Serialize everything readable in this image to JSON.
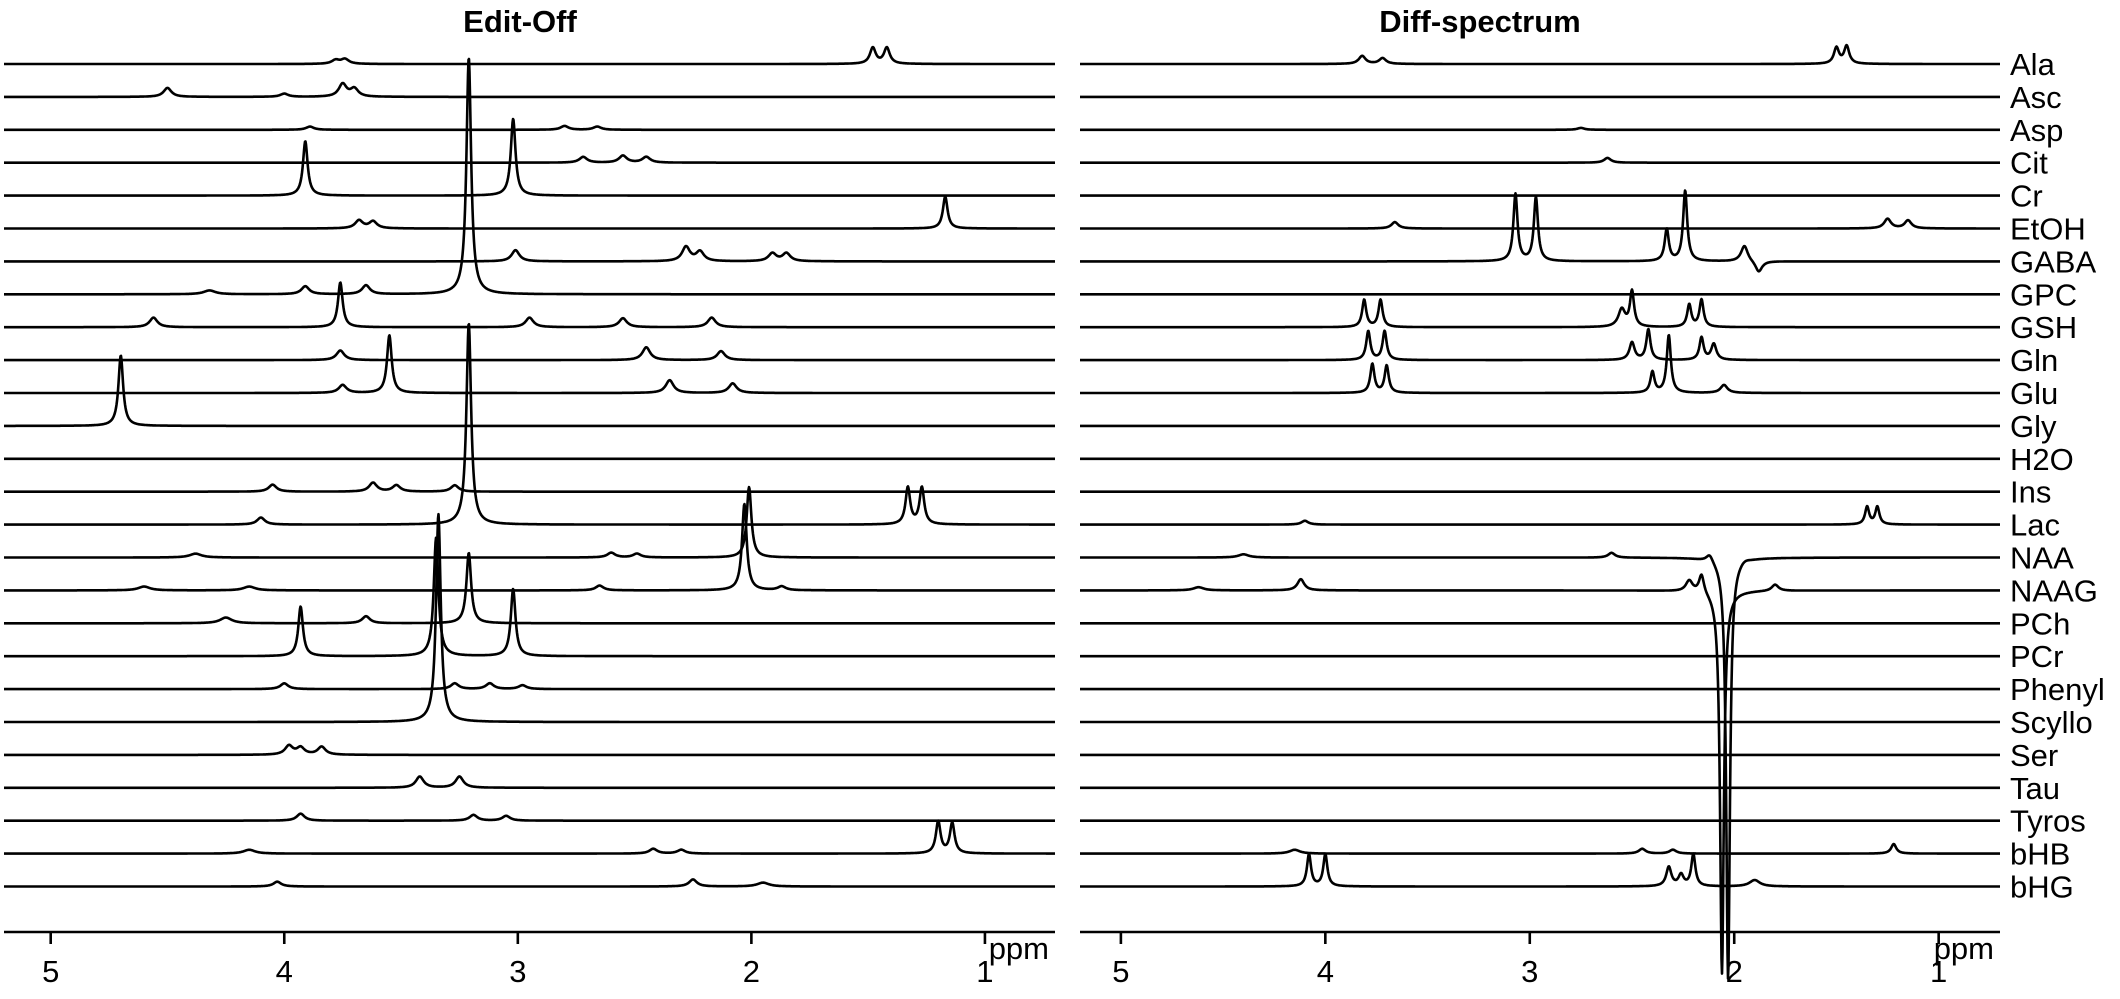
{
  "chart_data": [
    {
      "type": "line",
      "title": "Edit-Off",
      "xlabel": "ppm",
      "x_reversed": true,
      "xlim": [
        5.2,
        0.7
      ],
      "xticks": [
        5,
        4,
        3,
        2,
        1
      ],
      "xtick_labels": [
        "5",
        "4",
        "3",
        "2",
        "1"
      ],
      "grid": false,
      "stacked_offset_traces": true,
      "series": [
        {
          "name": "Ala",
          "peaks": [
            [
              3.78,
              0.12,
              0.02
            ],
            [
              3.74,
              0.15,
              0.02
            ],
            [
              1.48,
              0.5,
              0.015
            ],
            [
              1.42,
              0.5,
              0.015
            ]
          ]
        },
        {
          "name": "Asc",
          "peaks": [
            [
              4.5,
              0.28,
              0.02
            ],
            [
              4.0,
              0.1,
              0.02
            ],
            [
              3.75,
              0.4,
              0.02
            ],
            [
              3.7,
              0.25,
              0.02
            ]
          ]
        },
        {
          "name": "Asp",
          "peaks": [
            [
              3.89,
              0.1,
              0.02
            ],
            [
              2.8,
              0.12,
              0.02
            ],
            [
              2.66,
              0.1,
              0.02
            ]
          ]
        },
        {
          "name": "Cit",
          "peaks": [
            [
              2.72,
              0.18,
              0.02
            ],
            [
              2.55,
              0.22,
              0.02
            ],
            [
              2.45,
              0.18,
              0.02
            ]
          ]
        },
        {
          "name": "Cr",
          "peaks": [
            [
              3.91,
              1.7,
              0.012
            ],
            [
              3.02,
              2.4,
              0.012
            ]
          ]
        },
        {
          "name": "EtOH",
          "peaks": [
            [
              3.68,
              0.25,
              0.02
            ],
            [
              3.62,
              0.22,
              0.02
            ],
            [
              1.17,
              1.0,
              0.012
            ]
          ]
        },
        {
          "name": "GABA",
          "peaks": [
            [
              3.01,
              0.35,
              0.02
            ],
            [
              2.28,
              0.45,
              0.02
            ],
            [
              2.22,
              0.3,
              0.02
            ],
            [
              1.91,
              0.25,
              0.02
            ],
            [
              1.85,
              0.25,
              0.02
            ]
          ]
        },
        {
          "name": "GPC",
          "peaks": [
            [
              4.32,
              0.12,
              0.03
            ],
            [
              3.91,
              0.25,
              0.02
            ],
            [
              3.65,
              0.28,
              0.02
            ],
            [
              3.21,
              7.4,
              0.012
            ]
          ]
        },
        {
          "name": "GSH",
          "peaks": [
            [
              4.56,
              0.3,
              0.02
            ],
            [
              3.76,
              1.4,
              0.012
            ],
            [
              2.95,
              0.3,
              0.02
            ],
            [
              2.55,
              0.28,
              0.02
            ],
            [
              2.17,
              0.3,
              0.02
            ]
          ]
        },
        {
          "name": "Gln",
          "peaks": [
            [
              3.76,
              0.3,
              0.02
            ],
            [
              2.45,
              0.4,
              0.02
            ],
            [
              2.13,
              0.28,
              0.02
            ]
          ]
        },
        {
          "name": "Glu",
          "peaks": [
            [
              3.75,
              0.25,
              0.02
            ],
            [
              3.55,
              1.8,
              0.012
            ],
            [
              2.35,
              0.4,
              0.02
            ],
            [
              2.08,
              0.3,
              0.02
            ]
          ]
        },
        {
          "name": "Gly",
          "peaks": [
            [
              4.7,
              2.2,
              0.012
            ]
          ]
        },
        {
          "name": "H2O",
          "peaks": []
        },
        {
          "name": "Ins",
          "peaks": [
            [
              4.05,
              0.22,
              0.02
            ],
            [
              3.62,
              0.28,
              0.02
            ],
            [
              3.52,
              0.2,
              0.02
            ],
            [
              3.27,
              0.2,
              0.02
            ]
          ]
        },
        {
          "name": "Lac",
          "peaks": [
            [
              4.1,
              0.22,
              0.02
            ],
            [
              3.21,
              6.3,
              0.012
            ],
            [
              1.33,
              1.15,
              0.012
            ],
            [
              1.27,
              1.15,
              0.012
            ]
          ]
        },
        {
          "name": "NAA",
          "peaks": [
            [
              4.38,
              0.12,
              0.03
            ],
            [
              2.6,
              0.15,
              0.02
            ],
            [
              2.01,
              2.2,
              0.012
            ],
            [
              2.49,
              0.12,
              0.02
            ]
          ]
        },
        {
          "name": "NAAG",
          "peaks": [
            [
              4.6,
              0.12,
              0.03
            ],
            [
              4.15,
              0.12,
              0.03
            ],
            [
              2.65,
              0.15,
              0.02
            ],
            [
              2.03,
              2.7,
              0.012
            ],
            [
              1.87,
              0.12,
              0.02
            ]
          ]
        },
        {
          "name": "PCh",
          "peaks": [
            [
              4.25,
              0.18,
              0.03
            ],
            [
              3.65,
              0.22,
              0.02
            ],
            [
              3.21,
              2.2,
              0.012
            ]
          ]
        },
        {
          "name": "PCr",
          "peaks": [
            [
              3.93,
              1.55,
              0.012
            ],
            [
              3.35,
              3.7,
              0.012
            ],
            [
              3.02,
              2.1,
              0.012
            ]
          ]
        },
        {
          "name": "Phenyl",
          "peaks": [
            [
              4.0,
              0.18,
              0.02
            ],
            [
              3.27,
              0.18,
              0.02
            ],
            [
              3.12,
              0.18,
              0.02
            ],
            [
              2.98,
              0.12,
              0.02
            ]
          ]
        },
        {
          "name": "Scyllo",
          "peaks": [
            [
              3.34,
              6.5,
              0.012
            ]
          ]
        },
        {
          "name": "Ser",
          "peaks": [
            [
              3.98,
              0.28,
              0.02
            ],
            [
              3.93,
              0.22,
              0.02
            ],
            [
              3.84,
              0.25,
              0.02
            ]
          ]
        },
        {
          "name": "Tau",
          "peaks": [
            [
              3.42,
              0.35,
              0.02
            ],
            [
              3.25,
              0.35,
              0.02
            ]
          ]
        },
        {
          "name": "Tyros",
          "peaks": [
            [
              3.93,
              0.22,
              0.02
            ],
            [
              3.19,
              0.18,
              0.02
            ],
            [
              3.05,
              0.15,
              0.02
            ]
          ]
        },
        {
          "name": "bHB",
          "peaks": [
            [
              4.15,
              0.12,
              0.03
            ],
            [
              2.42,
              0.15,
              0.02
            ],
            [
              2.3,
              0.12,
              0.02
            ],
            [
              1.2,
              1.0,
              0.012
            ],
            [
              1.14,
              0.95,
              0.012
            ]
          ]
        },
        {
          "name": "bHG",
          "peaks": [
            [
              4.03,
              0.15,
              0.02
            ],
            [
              2.25,
              0.22,
              0.02
            ],
            [
              1.95,
              0.12,
              0.03
            ]
          ]
        }
      ]
    },
    {
      "type": "line",
      "title": "Diff-spectrum",
      "xlabel": "ppm",
      "x_reversed": true,
      "xlim": [
        5.2,
        0.7
      ],
      "xticks": [
        5,
        4,
        3,
        2,
        1
      ],
      "xtick_labels": [
        "5",
        "4",
        "3",
        "2",
        "1"
      ],
      "grid": false,
      "stacked_offset_traces": true,
      "series": [
        {
          "name": "Ala",
          "peaks": [
            [
              3.82,
              0.25,
              0.02
            ],
            [
              3.72,
              0.18,
              0.02
            ],
            [
              1.5,
              0.5,
              0.015
            ],
            [
              1.45,
              0.55,
              0.015
            ]
          ]
        },
        {
          "name": "Asc",
          "peaks": []
        },
        {
          "name": "Asp",
          "peaks": [
            [
              2.75,
              0.06,
              0.02
            ]
          ]
        },
        {
          "name": "Cit",
          "peaks": [
            [
              2.62,
              0.15,
              0.02
            ]
          ]
        },
        {
          "name": "Cr",
          "peaks": []
        },
        {
          "name": "EtOH",
          "peaks": [
            [
              3.66,
              0.2,
              0.02
            ],
            [
              1.25,
              0.3,
              0.02
            ],
            [
              1.15,
              0.25,
              0.02
            ]
          ]
        },
        {
          "name": "GABA",
          "peaks": [
            [
              3.07,
              2.1,
              0.012
            ],
            [
              2.97,
              2.0,
              0.012
            ],
            [
              2.33,
              1.0,
              0.012
            ],
            [
              2.24,
              2.2,
              0.012
            ],
            [
              1.95,
              0.5,
              0.02
            ],
            [
              1.88,
              -0.35,
              0.02
            ]
          ]
        },
        {
          "name": "GPC",
          "peaks": []
        },
        {
          "name": "GSH",
          "peaks": [
            [
              3.81,
              0.85,
              0.012
            ],
            [
              3.73,
              0.85,
              0.012
            ],
            [
              2.55,
              0.55,
              0.02
            ],
            [
              2.5,
              1.1,
              0.012
            ],
            [
              2.22,
              0.7,
              0.012
            ],
            [
              2.16,
              0.85,
              0.012
            ]
          ]
        },
        {
          "name": "Gln",
          "peaks": [
            [
              3.79,
              0.9,
              0.012
            ],
            [
              3.71,
              0.9,
              0.012
            ],
            [
              2.5,
              0.55,
              0.015
            ],
            [
              2.42,
              0.95,
              0.012
            ],
            [
              2.16,
              0.7,
              0.012
            ],
            [
              2.1,
              0.5,
              0.015
            ]
          ]
        },
        {
          "name": "Glu",
          "peaks": [
            [
              3.77,
              0.9,
              0.012
            ],
            [
              3.7,
              0.85,
              0.012
            ],
            [
              2.4,
              0.65,
              0.012
            ],
            [
              2.32,
              1.8,
              0.012
            ],
            [
              2.05,
              0.25,
              0.02
            ]
          ]
        },
        {
          "name": "Gly",
          "peaks": []
        },
        {
          "name": "H2O",
          "peaks": []
        },
        {
          "name": "Ins",
          "peaks": []
        },
        {
          "name": "Lac",
          "peaks": [
            [
              4.1,
              0.12,
              0.02
            ],
            [
              1.35,
              0.55,
              0.012
            ],
            [
              1.3,
              0.55,
              0.012
            ]
          ]
        },
        {
          "name": "NAA",
          "peaks": [
            [
              4.4,
              0.1,
              0.03
            ],
            [
              2.6,
              0.15,
              0.02
            ],
            [
              2.12,
              0.25,
              0.02
            ],
            [
              2.03,
              -13.2,
              0.011
            ],
            [
              1.95,
              0.1,
              0.03
            ]
          ]
        },
        {
          "name": "NAAG",
          "peaks": [
            [
              4.62,
              0.1,
              0.03
            ],
            [
              4.12,
              0.35,
              0.02
            ],
            [
              2.22,
              0.35,
              0.02
            ],
            [
              2.16,
              0.6,
              0.015
            ],
            [
              2.06,
              -12.0,
              0.011
            ],
            [
              1.8,
              0.2,
              0.02
            ]
          ]
        },
        {
          "name": "PCh",
          "peaks": []
        },
        {
          "name": "PCr",
          "peaks": []
        },
        {
          "name": "Phenyl",
          "peaks": []
        },
        {
          "name": "Scyllo",
          "peaks": []
        },
        {
          "name": "Ser",
          "peaks": []
        },
        {
          "name": "Tau",
          "peaks": []
        },
        {
          "name": "Tyros",
          "peaks": []
        },
        {
          "name": "bHB",
          "peaks": [
            [
              4.15,
              0.12,
              0.03
            ],
            [
              2.45,
              0.15,
              0.02
            ],
            [
              2.3,
              0.12,
              0.02
            ],
            [
              1.22,
              0.3,
              0.015
            ]
          ]
        },
        {
          "name": "bHG",
          "peaks": [
            [
              4.08,
              1.0,
              0.012
            ],
            [
              4.0,
              1.0,
              0.012
            ],
            [
              2.32,
              0.6,
              0.015
            ],
            [
              2.26,
              0.35,
              0.015
            ],
            [
              2.2,
              1.0,
              0.012
            ],
            [
              1.9,
              0.2,
              0.03
            ]
          ]
        }
      ]
    }
  ]
}
